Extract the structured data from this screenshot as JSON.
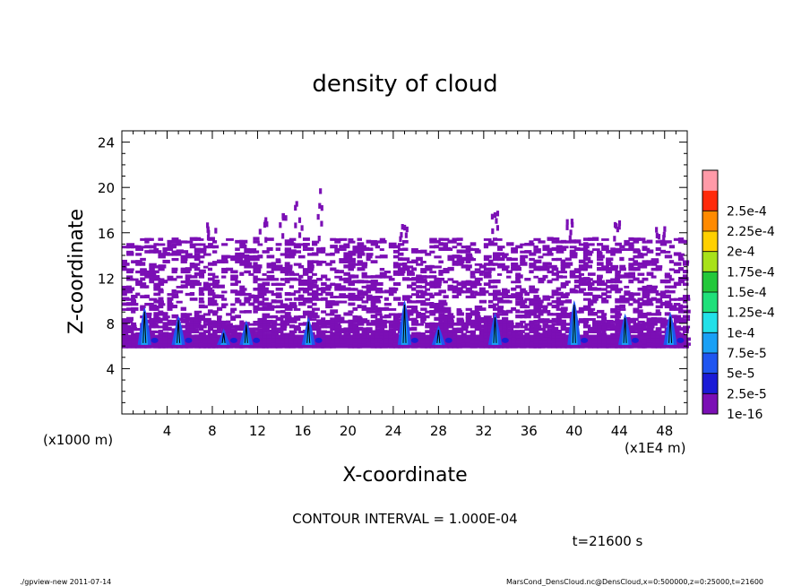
{
  "chart_data": {
    "type": "heatmap",
    "title": "density of cloud",
    "xlabel": "X-coordinate",
    "ylabel": "Z-coordinate",
    "x_unit_left": "(x1000 m)",
    "x_unit_right": "(x1E4 m)",
    "xlim": [
      0,
      50
    ],
    "ylim": [
      0,
      25
    ],
    "x_ticks": [
      "4",
      "8",
      "12",
      "16",
      "20",
      "24",
      "28",
      "32",
      "36",
      "40",
      "44",
      "48"
    ],
    "y_ticks": [
      "4",
      "8",
      "12",
      "16",
      "20",
      "24"
    ],
    "legend_labels": [
      "1e-16",
      "2.5e-5",
      "5e-5",
      "7.5e-5",
      "1e-4",
      "1.25e-4",
      "1.5e-4",
      "1.75e-4",
      "2e-4",
      "2.25e-4",
      "2.5e-4"
    ],
    "legend_colors": [
      "#7b0fb5",
      "#1b1bd6",
      "#1f55f0",
      "#1aa0f5",
      "#22e0e8",
      "#1fe07a",
      "#23c83a",
      "#a8e21a",
      "#ffd000",
      "#ff8a00",
      "#ff2a0a",
      "#ff9aa8"
    ],
    "cloud_layer": {
      "z_min": 5.8,
      "z_max": 15.5,
      "x_min": 0,
      "x_max": 50
    },
    "convective_cores_x": [
      2,
      5,
      9,
      11,
      16.5,
      25,
      28,
      33,
      40,
      44.5,
      48.5
    ],
    "contour_interval": "CONTOUR INTERVAL = 1.000E-04",
    "time_label": "t=21600 s",
    "footer_left": "./gpview-new   2011-07-14",
    "footer_right": "MarsCond_DensCloud.nc@DensCloud,x=0:500000,z=0:25000,t=21600"
  }
}
